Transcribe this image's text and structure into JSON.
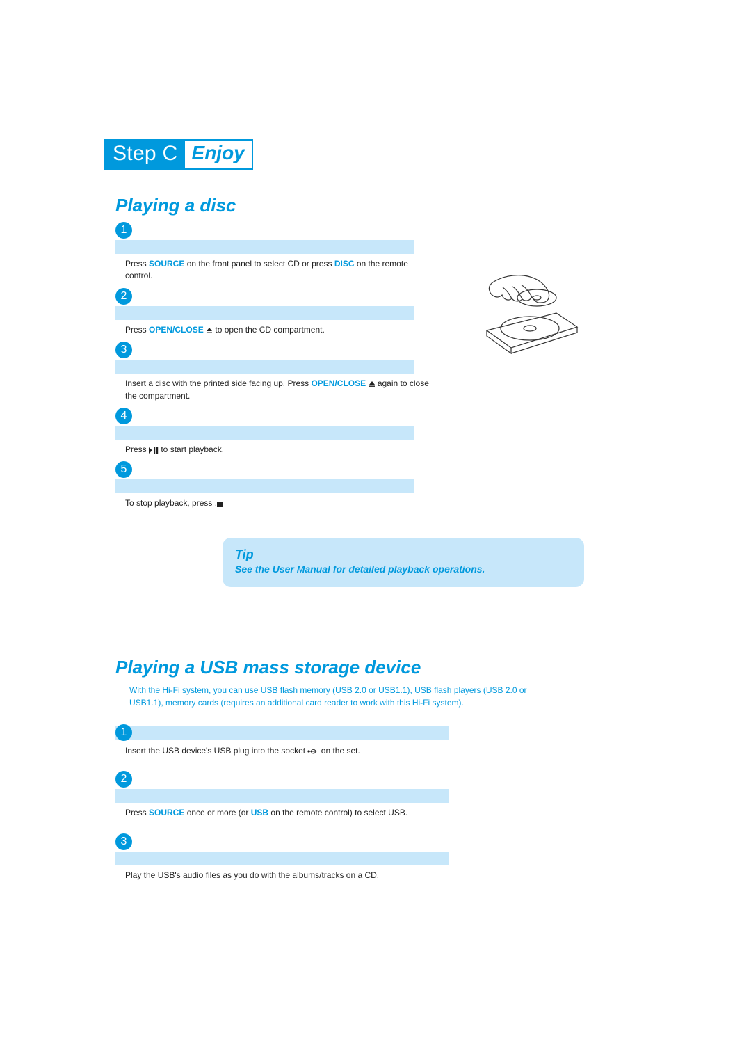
{
  "colors": {
    "accent": "#0099dd",
    "bar_bg": "#c7e7fa",
    "text": "#222222",
    "page_bg": "#ffffff"
  },
  "header": {
    "step_label": "Step C",
    "enjoy_label": "Enjoy"
  },
  "disc": {
    "title": "Playing a disc",
    "steps": [
      {
        "num": "1",
        "pre": "Press ",
        "kw1": "SOURCE",
        "mid": " on the front panel to select CD or press ",
        "kw2": "DISC",
        "post": " on the remote control."
      },
      {
        "num": "2",
        "pre": "Press ",
        "kw1": "OPEN/CLOSE",
        "post": " to open the CD compartment.",
        "eject": true
      },
      {
        "num": "3",
        "pre": "Insert a disc with the printed side facing up. Press ",
        "kw1": "OPEN/CLOSE",
        "post": " again to close the compartment.",
        "eject": true
      },
      {
        "num": "4",
        "pre": "Press  ",
        "play_pause": true,
        "post": "  to start playback."
      },
      {
        "num": "5",
        "pre": "To stop playback, press ",
        "stop": true,
        "post": "."
      }
    ]
  },
  "tip": {
    "title": "Tip",
    "text": "See the User Manual for detailed playback operations."
  },
  "usb": {
    "title": "Playing a USB mass storage device",
    "intro": "With the Hi-Fi system, you can use USB flash memory (USB 2.0 or USB1.1), USB flash players (USB 2.0 or USB1.1),  memory cards (requires an additional card reader  to work with this Hi-Fi system).",
    "steps": [
      {
        "num": "1",
        "pre": "Insert the USB device's USB plug into the socket ",
        "usb_icon": true,
        "post": " on the set."
      },
      {
        "num": "2",
        "pre": "Press ",
        "kw1": "SOURCE",
        "mid": " once or more (or ",
        "kw2": "USB",
        "post": " on the remote control) to select USB."
      },
      {
        "num": "3",
        "pre": "Play the USB's audio files as you do with the albums/tracks on a CD."
      }
    ]
  }
}
